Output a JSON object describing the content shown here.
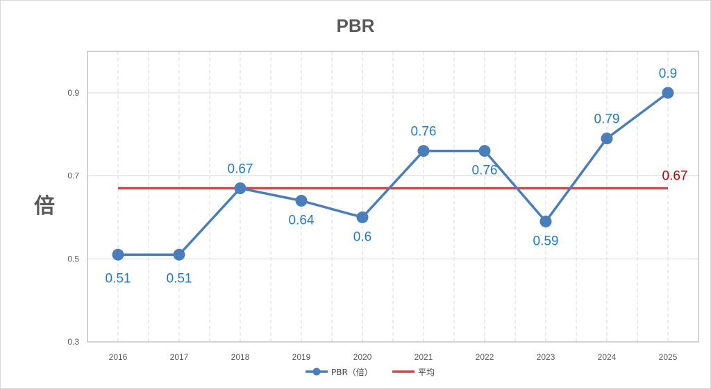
{
  "chart_data": {
    "type": "line",
    "title": "PBR",
    "ylabel": "倍",
    "xlabel": "",
    "categories": [
      "2016",
      "2017",
      "2018",
      "2019",
      "2020",
      "2021",
      "2022",
      "2023",
      "2024",
      "2025"
    ],
    "series": [
      {
        "name": "PBR（倍）",
        "values": [
          0.51,
          0.51,
          0.67,
          0.64,
          0.6,
          0.76,
          0.76,
          0.59,
          0.79,
          0.9
        ],
        "labels": [
          "0.51",
          "0.51",
          "0.67",
          "0.64",
          "0.6",
          "0.76",
          "0.76",
          "0.59",
          "0.79",
          "0.9"
        ],
        "color": "#4a7ebb"
      },
      {
        "name": "平均",
        "values": [
          0.67,
          0.67,
          0.67,
          0.67,
          0.67,
          0.67,
          0.67,
          0.67,
          0.67,
          0.67
        ],
        "label": "0.67",
        "color": "#c0504d"
      }
    ],
    "ylim": [
      0.3,
      1.0
    ],
    "yticks": [
      "0.3",
      "0.5",
      "0.7",
      "0.9"
    ],
    "ytick_values": [
      0.3,
      0.5,
      0.7,
      0.9
    ],
    "grid": true,
    "legend_position": "bottom",
    "label_color": "#1f7ac8",
    "avg_label_color": "#c00000"
  }
}
